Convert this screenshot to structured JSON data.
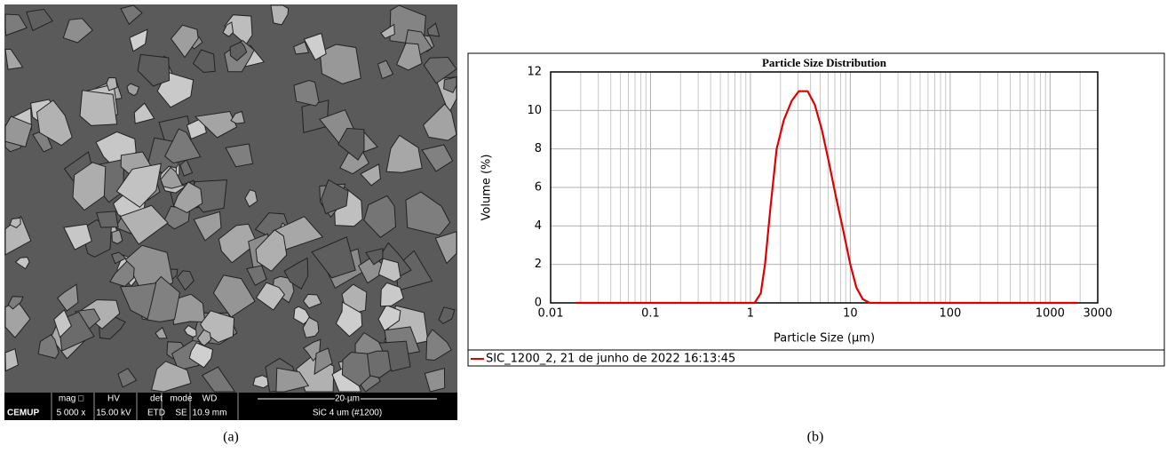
{
  "sem_image": {
    "logo": "CEMUP",
    "columns": [
      {
        "head": "mag □",
        "value": "5 000 x"
      },
      {
        "head": "HV",
        "value": "15.00 kV"
      },
      {
        "head": "det",
        "value": "ETD"
      },
      {
        "head": "mode",
        "value": "SE"
      },
      {
        "head": "WD",
        "value": "10.9 mm"
      }
    ],
    "scale_bar": "20 µm",
    "sample": "SiC 4 um (#1200)",
    "panel_label": "(a)"
  },
  "chart_data": {
    "type": "line",
    "title": "Particle Size Distribution",
    "xlabel": "Particle Size (µm)",
    "ylabel": "Volume (%)",
    "x": [
      0.018,
      1.1,
      1.27,
      1.4,
      1.59,
      1.83,
      2.16,
      2.59,
      3.05,
      3.74,
      4.41,
      5.19,
      6.11,
      7.19,
      8.47,
      10,
      11.5,
      13.3,
      15.6,
      1900
    ],
    "series": [
      {
        "name": "SIC_1200_2, 21 de junho de 2022 16:13:45",
        "color": "#e00000",
        "values": [
          0,
          0,
          0.5,
          2,
          5,
          8,
          9.5,
          10.5,
          11,
          11,
          10.3,
          9,
          7.3,
          5.5,
          3.8,
          2,
          0.8,
          0.2,
          0,
          0
        ]
      }
    ],
    "xscale": "log",
    "xlim": [
      0.01,
      3000
    ],
    "xticks": [
      0.01,
      0.1,
      1,
      10,
      100,
      1000,
      3000
    ],
    "ylim": [
      0,
      12
    ],
    "yticks": [
      0,
      2,
      4,
      6,
      8,
      10,
      12
    ],
    "grid": true,
    "panel_label": "(b)"
  }
}
